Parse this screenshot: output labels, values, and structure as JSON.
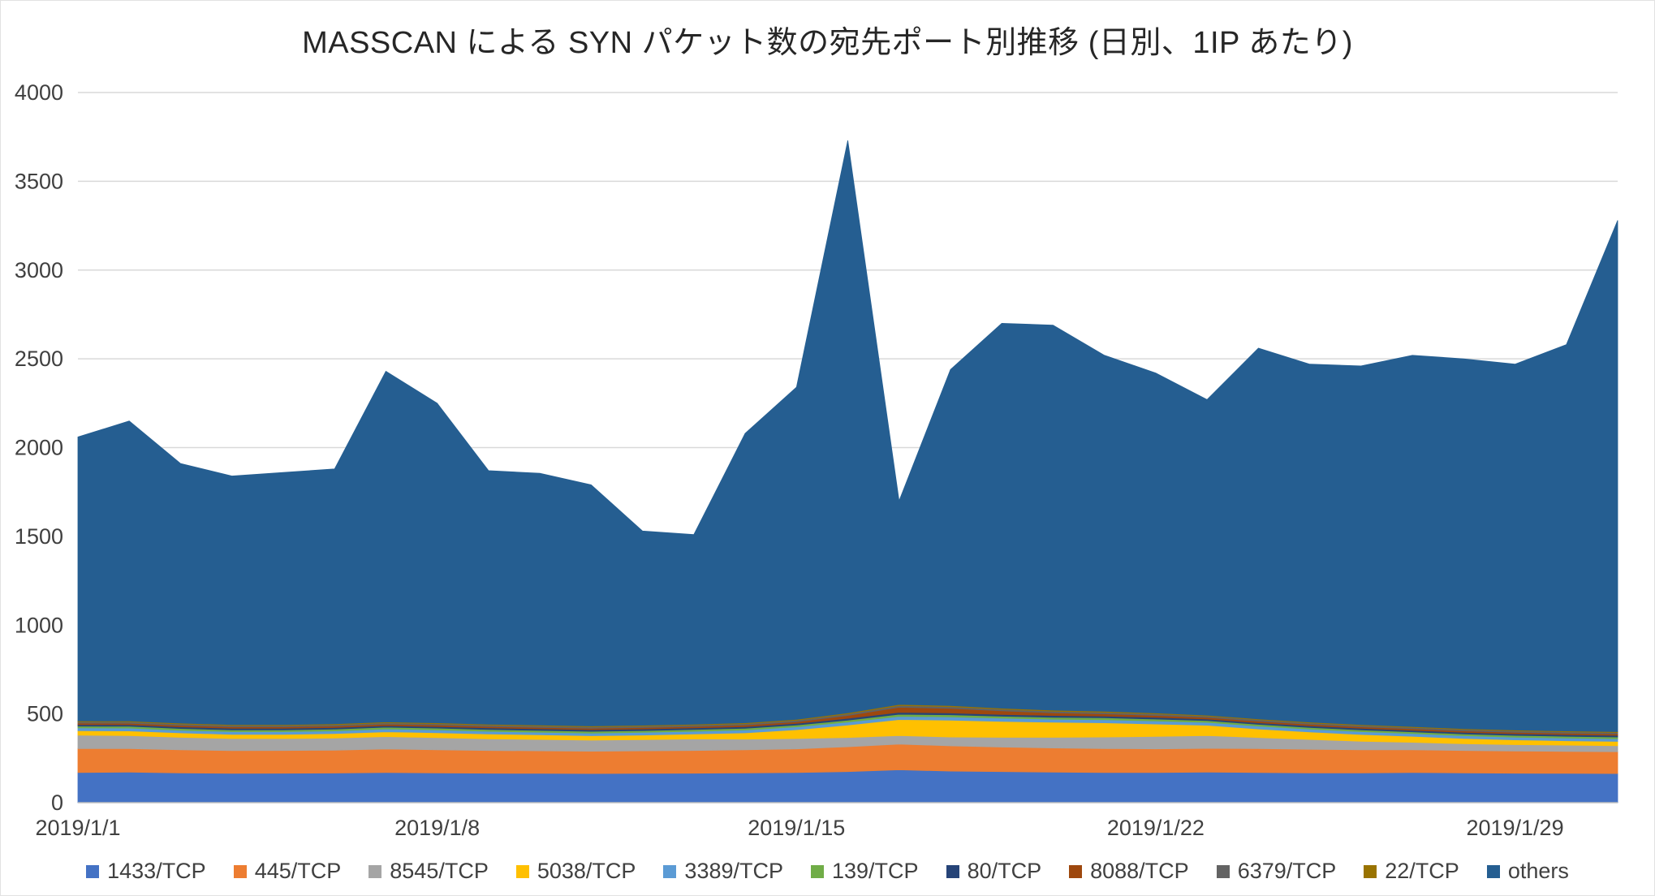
{
  "page": {
    "background": "#FFFFFF",
    "border_color": "#E2E2E2"
  },
  "chart_data": {
    "type": "area",
    "stacked": true,
    "title": "MASSCAN による SYN パケット数の宛先ポート別推移 (日別、1IP あたり)",
    "xlabel": "",
    "ylabel": "",
    "ylim": [
      0,
      4000
    ],
    "y_ticks": [
      0,
      500,
      1000,
      1500,
      2000,
      2500,
      3000,
      3500,
      4000
    ],
    "grid": true,
    "grid_color": "#D9D9D9",
    "axis_color": "#BFBFBF",
    "text_color": "#404040",
    "title_color": "#262626",
    "legend_position": "bottom",
    "x": [
      "2019/1/1",
      "2019/1/2",
      "2019/1/3",
      "2019/1/4",
      "2019/1/5",
      "2019/1/6",
      "2019/1/7",
      "2019/1/8",
      "2019/1/9",
      "2019/1/10",
      "2019/1/11",
      "2019/1/12",
      "2019/1/13",
      "2019/1/14",
      "2019/1/15",
      "2019/1/16",
      "2019/1/17",
      "2019/1/18",
      "2019/1/19",
      "2019/1/20",
      "2019/1/21",
      "2019/1/22",
      "2019/1/23",
      "2019/1/24",
      "2019/1/25",
      "2019/1/26",
      "2019/1/27",
      "2019/1/28",
      "2019/1/29",
      "2019/1/30",
      "2019/1/31"
    ],
    "x_tick_labels": [
      "2019/1/1",
      "2019/1/8",
      "2019/1/15",
      "2019/1/22",
      "2019/1/29"
    ],
    "x_tick_indices": [
      0,
      7,
      14,
      21,
      28
    ],
    "series": [
      {
        "name": "1433/TCP",
        "color": "#4472C4",
        "values": [
          170,
          172,
          168,
          165,
          166,
          167,
          170,
          168,
          166,
          165,
          164,
          165,
          166,
          168,
          170,
          175,
          185,
          178,
          175,
          172,
          170,
          170,
          172,
          170,
          168,
          168,
          170,
          168,
          166,
          165,
          164
        ]
      },
      {
        "name": "445/TCP",
        "color": "#ED7D31",
        "values": [
          135,
          133,
          130,
          128,
          128,
          129,
          132,
          130,
          128,
          127,
          126,
          127,
          128,
          130,
          133,
          140,
          145,
          142,
          138,
          136,
          135,
          133,
          134,
          135,
          133,
          130,
          128,
          126,
          125,
          124,
          123
        ]
      },
      {
        "name": "8545/TCP",
        "color": "#A5A5A5",
        "values": [
          75,
          73,
          70,
          68,
          67,
          68,
          70,
          68,
          66,
          64,
          62,
          63,
          65,
          60,
          58,
          52,
          48,
          50,
          55,
          60,
          65,
          70,
          72,
          62,
          55,
          48,
          42,
          38,
          36,
          35,
          34
        ]
      },
      {
        "name": "5038/TCP",
        "color": "#FFC000",
        "values": [
          25,
          26,
          25,
          24,
          24,
          25,
          27,
          28,
          27,
          26,
          25,
          26,
          28,
          35,
          50,
          70,
          90,
          95,
          90,
          85,
          80,
          70,
          58,
          48,
          42,
          38,
          34,
          30,
          27,
          25,
          24
        ]
      },
      {
        "name": "3389/TCP",
        "color": "#5B9BD5",
        "values": [
          16,
          16,
          15,
          15,
          15,
          15,
          16,
          16,
          15,
          15,
          15,
          15,
          15,
          16,
          16,
          17,
          18,
          18,
          18,
          17,
          17,
          17,
          16,
          16,
          16,
          16,
          15,
          15,
          15,
          15,
          15
        ]
      },
      {
        "name": "139/TCP",
        "color": "#70AD47",
        "values": [
          10,
          10,
          10,
          10,
          10,
          10,
          10,
          10,
          10,
          10,
          10,
          10,
          10,
          10,
          10,
          11,
          12,
          12,
          11,
          11,
          11,
          11,
          10,
          10,
          10,
          10,
          10,
          10,
          10,
          10,
          10
        ]
      },
      {
        "name": "80/TCP",
        "color": "#264478",
        "values": [
          9,
          9,
          9,
          9,
          9,
          9,
          9,
          9,
          9,
          9,
          9,
          9,
          9,
          9,
          9,
          10,
          11,
          10,
          10,
          10,
          10,
          10,
          9,
          9,
          9,
          9,
          9,
          9,
          9,
          9,
          9
        ]
      },
      {
        "name": "8088/TCP",
        "color": "#9E480E",
        "values": [
          8,
          8,
          8,
          8,
          8,
          8,
          8,
          8,
          8,
          8,
          8,
          8,
          8,
          9,
          10,
          16,
          28,
          26,
          20,
          15,
          12,
          10,
          9,
          9,
          8,
          8,
          8,
          8,
          8,
          8,
          8
        ]
      },
      {
        "name": "6379/TCP",
        "color": "#636363",
        "values": [
          8,
          8,
          8,
          8,
          8,
          8,
          8,
          8,
          8,
          8,
          8,
          8,
          8,
          8,
          8,
          9,
          10,
          10,
          9,
          9,
          9,
          9,
          8,
          8,
          8,
          8,
          8,
          8,
          8,
          8,
          8
        ]
      },
      {
        "name": "22/TCP",
        "color": "#997300",
        "values": [
          5,
          5,
          5,
          5,
          5,
          5,
          5,
          5,
          5,
          5,
          5,
          5,
          5,
          5,
          5,
          6,
          6,
          6,
          6,
          6,
          6,
          5,
          5,
          5,
          5,
          5,
          5,
          5,
          5,
          5,
          5
        ]
      },
      {
        "name": "others",
        "color": "#255E91",
        "values": [
          1599,
          1690,
          1462,
          1400,
          1420,
          1436,
          1975,
          1800,
          1428,
          1418,
          1358,
          1094,
          1068,
          1630,
          1871,
          3224,
          1147,
          1893,
          2168,
          2169,
          2005,
          1915,
          1777,
          2088,
          2016,
          2020,
          2091,
          2083,
          2061,
          2176,
          2880
        ]
      }
    ]
  }
}
